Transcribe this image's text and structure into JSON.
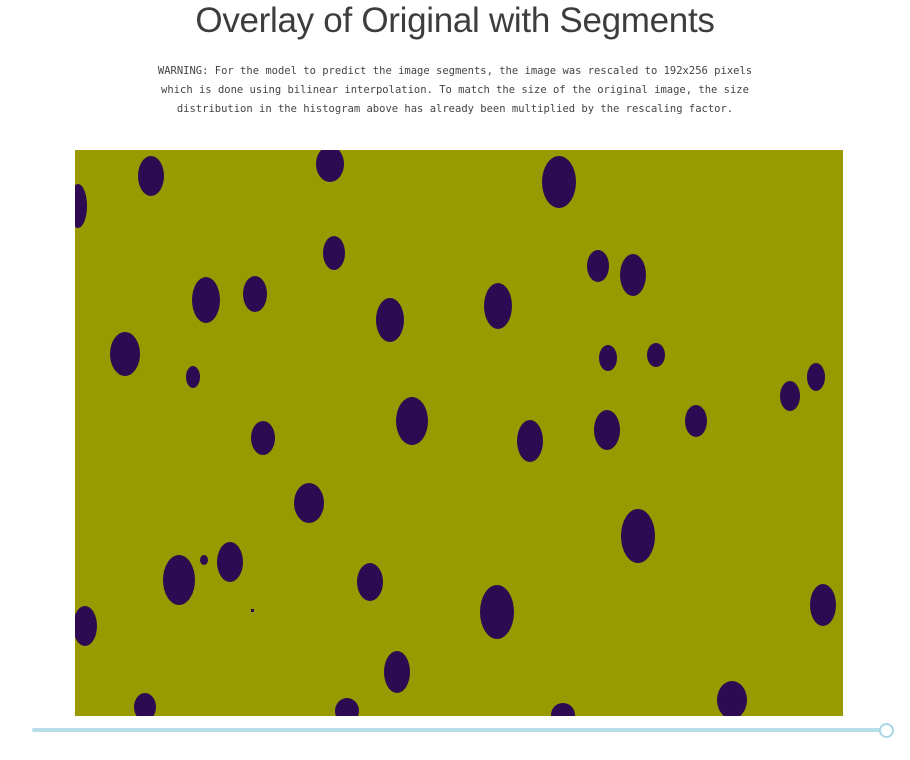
{
  "page": {
    "title": "Overlay of Original with Segments",
    "warning_lines": [
      "WARNING: For the model to predict the image segments, the image was rescaled to 192x256 pixels",
      "which is done using bilinear interpolation. To match the size of the original image, the size",
      "distribution in the histogram above has already been multiplied by the rescaling factor."
    ]
  },
  "overlay": {
    "background_color": "#999900",
    "segment_color": "#2e0a52"
  },
  "slider": {
    "track_color": "#b7dde9",
    "thumb_border_color": "#a9d6e5",
    "value_fraction": 1.0
  }
}
